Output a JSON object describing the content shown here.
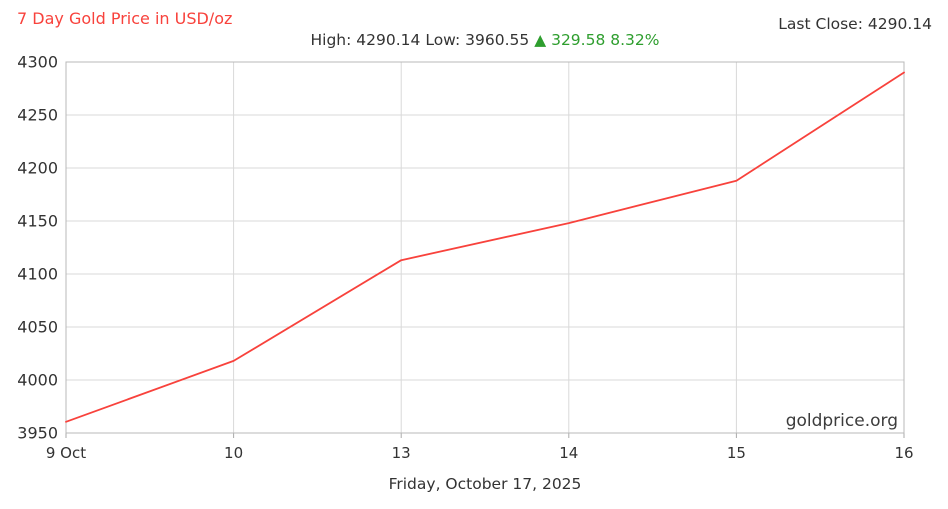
{
  "header": {
    "title": "7 Day Gold Price in USD/oz",
    "stats": {
      "high_label": "High:",
      "high_value": "4290.14",
      "low_label": "Low:",
      "low_value": "3960.55",
      "up_arrow": "▲",
      "change_value": "329.58",
      "change_percent": "8.32%"
    },
    "last_close_label": "Last Close:",
    "last_close_value": "4290.14"
  },
  "watermark": "goldprice.org",
  "footer": {
    "date": "Friday, October 17, 2025"
  },
  "colors": {
    "accent_red": "#f8423c",
    "positive_green": "#2e9e2e",
    "text": "#333333",
    "grid": "#d9d9d9",
    "axis_border": "#b8b8b8",
    "tick": "#aaaaaa"
  },
  "chart_data": {
    "type": "line",
    "title": "7 Day Gold Price in USD/oz",
    "categories": [
      "9 Oct",
      "10",
      "13",
      "14",
      "15",
      "16"
    ],
    "values": [
      3960.55,
      4018,
      4113,
      4148,
      4188,
      4290.14
    ],
    "series_name": "Gold price (USD/oz)",
    "xlabel": "Friday, October 17, 2025",
    "ylabel": "",
    "ylim": [
      3950,
      4300
    ],
    "ytick_step": 50,
    "ytick_labels": [
      "3950",
      "4000",
      "4050",
      "4100",
      "4150",
      "4200",
      "4250",
      "4300"
    ],
    "grid": true,
    "legend_position": "none",
    "line_color": "#f8423c",
    "high": 4290.14,
    "low": 3960.55,
    "change": 329.58,
    "change_percent": "8.32%",
    "last_close": 4290.14
  }
}
